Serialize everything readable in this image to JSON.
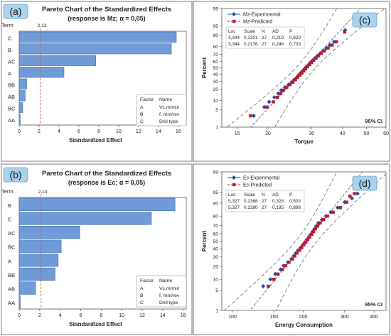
{
  "panel_tags": {
    "a": "(a)",
    "b": "(b)",
    "c": "(c)",
    "d": "(d)"
  },
  "colors": {
    "bar_fill": "#6f9bd8",
    "bar_stroke": "#3f6aa6",
    "ref_line": "#c0504d",
    "experimental": "#1f4e9c",
    "predicted": "#c0182a",
    "panel_border": "#777777",
    "tag_bg": "#a9d3ee"
  },
  "chart_data": [
    {
      "id": "a",
      "type": "bar",
      "orientation": "horizontal",
      "title": "Pareto Chart of the Standardized Effects",
      "subtitle": "(response is Mz; α = 0,05)",
      "ylabel": "Term",
      "xlabel": "Standardized Effect",
      "categories": [
        "C",
        "B",
        "AC",
        "A",
        "BB",
        "AB",
        "BC",
        "AA"
      ],
      "values": [
        15.8,
        15.3,
        7.7,
        4.5,
        0.75,
        0.6,
        0.35,
        0.1
      ],
      "reference": {
        "value": 2.13,
        "label": "2,13"
      },
      "xlim": [
        0,
        16.8
      ],
      "xticks": [
        "0",
        "2",
        "4",
        "6",
        "8",
        "10",
        "12",
        "14",
        "16"
      ],
      "legend": {
        "position": "bottom-right",
        "header": [
          "Factor",
          "Name"
        ],
        "rows": [
          [
            "A",
            "Vc.m/min"
          ],
          [
            "B",
            "f, mm/rev"
          ],
          [
            "C",
            "Drill type"
          ]
        ]
      }
    },
    {
      "id": "b",
      "type": "bar",
      "orientation": "horizontal",
      "title": "Pareto Chart of the Standardized Effects",
      "subtitle": "(response is Ec; α = 0,05)",
      "ylabel": "Term",
      "xlabel": "Standardized Effect",
      "categories": [
        "B",
        "C",
        "AC",
        "BC",
        "A",
        "BB",
        "AB",
        "AA"
      ],
      "values": [
        15.2,
        12.9,
        5.9,
        4.1,
        3.8,
        3.5,
        1.6,
        0.1
      ],
      "reference": {
        "value": 2.13,
        "label": "2,13"
      },
      "xlim": [
        0,
        16.3
      ],
      "xticks": [
        "0",
        "2",
        "4",
        "6",
        "8",
        "10",
        "12",
        "14",
        "16"
      ],
      "legend": {
        "position": "bottom-right",
        "header": [
          "Factor",
          "Name"
        ],
        "rows": [
          [
            "A",
            "Vc.m/min"
          ],
          [
            "B",
            "f, mm/rev"
          ],
          [
            "C",
            "Drill type"
          ]
        ]
      }
    },
    {
      "id": "c",
      "type": "scatter",
      "plot": "normal probability plot",
      "xlabel": "Torque",
      "ylabel": "Percent",
      "x_scale": "log",
      "y_scale": "normal probability",
      "xlim": [
        13,
        60
      ],
      "xticks": [
        15,
        20,
        30,
        40,
        50,
        60
      ],
      "yticks": [
        1,
        5,
        10,
        20,
        30,
        40,
        50,
        60,
        70,
        80,
        90,
        95,
        99
      ],
      "ci_label": "95% CI",
      "fit": {
        "median": 28.4,
        "scale": 0.22,
        "ci_factor": 0.19
      },
      "stats_table": {
        "header": [
          "Loc",
          "Scale",
          "N",
          "AD",
          "P"
        ],
        "rows": [
          [
            "3,344",
            "0,2201",
            "27",
            "0,219",
            "0,820"
          ],
          [
            "3,344",
            "0,2176",
            "27",
            "0,246",
            "0,733"
          ]
        ]
      },
      "series": [
        {
          "name": "Mz-Experimental",
          "marker": "diamond",
          "points": [
            [
              17.5,
              3.0
            ],
            [
              19.3,
              6.2
            ],
            [
              20.2,
              9.1
            ],
            [
              21.2,
              12.4
            ],
            [
              22.0,
              15.7
            ],
            [
              22.6,
              19.0
            ],
            [
              23.4,
              22.3
            ],
            [
              24.2,
              25.5
            ],
            [
              24.9,
              28.8
            ],
            [
              25.5,
              32.1
            ],
            [
              26.1,
              35.4
            ],
            [
              26.6,
              38.7
            ],
            [
              27.1,
              42.0
            ],
            [
              27.6,
              45.3
            ],
            [
              28.1,
              48.5
            ],
            [
              28.6,
              51.8
            ],
            [
              29.2,
              55.1
            ],
            [
              29.7,
              58.4
            ],
            [
              30.3,
              61.7
            ],
            [
              31.0,
              65.0
            ],
            [
              31.7,
              68.2
            ],
            [
              32.5,
              71.5
            ],
            [
              33.4,
              74.8
            ],
            [
              34.4,
              78.1
            ],
            [
              35.5,
              81.4
            ],
            [
              37.0,
              84.7
            ],
            [
              41.0,
              93.0
            ]
          ]
        },
        {
          "name": "Mz-Predicted",
          "marker": "square",
          "points": [
            [
              17.0,
              3.0
            ],
            [
              19.8,
              6.2
            ],
            [
              21.0,
              9.1
            ],
            [
              21.8,
              12.4
            ],
            [
              22.5,
              15.7
            ],
            [
              23.1,
              19.0
            ],
            [
              23.8,
              22.3
            ],
            [
              24.5,
              25.5
            ],
            [
              25.2,
              28.8
            ],
            [
              25.8,
              32.1
            ],
            [
              26.3,
              35.4
            ],
            [
              26.9,
              38.7
            ],
            [
              27.4,
              42.0
            ],
            [
              27.9,
              45.3
            ],
            [
              28.4,
              48.5
            ],
            [
              28.9,
              51.8
            ],
            [
              29.5,
              55.1
            ],
            [
              30.0,
              58.4
            ],
            [
              30.6,
              61.7
            ],
            [
              31.3,
              65.0
            ],
            [
              32.0,
              68.2
            ],
            [
              32.8,
              71.5
            ],
            [
              33.8,
              74.8
            ],
            [
              35.0,
              78.1
            ],
            [
              36.3,
              81.4
            ],
            [
              37.8,
              84.7
            ],
            [
              40.8,
              92.0
            ]
          ]
        }
      ]
    },
    {
      "id": "d",
      "type": "scatter",
      "plot": "normal probability plot",
      "xlabel": "Energy Consumption",
      "ylabel": "Percent",
      "x_scale": "log",
      "y_scale": "normal probability",
      "xlim": [
        90,
        450
      ],
      "xticks": [
        100,
        150,
        200,
        300,
        400
      ],
      "yticks": [
        1,
        5,
        10,
        20,
        30,
        40,
        50,
        60,
        70,
        80,
        90,
        95,
        99
      ],
      "ci_label": "95% CI",
      "fit": {
        "median": 206,
        "scale": 0.237,
        "ci_factor": 0.2
      },
      "stats_table": {
        "header": [
          "Loc",
          "Scale",
          "N",
          "AD",
          "P"
        ],
        "rows": [
          [
            "5,327",
            "0,2368",
            "27",
            "0,328",
            "0,503"
          ],
          [
            "5,327",
            "0,2380",
            "27",
            "0,185",
            "0,898"
          ]
        ]
      },
      "series": [
        {
          "name": "Ec-Experimental",
          "marker": "diamond",
          "points": [
            [
              135,
              6.5
            ],
            [
              145,
              10.0
            ],
            [
              152,
              13.5
            ],
            [
              160,
              17.0
            ],
            [
              165,
              20.5
            ],
            [
              172,
              24.0
            ],
            [
              178,
              27.5
            ],
            [
              182,
              31.0
            ],
            [
              186,
              34.5
            ],
            [
              190,
              38.0
            ],
            [
              195,
              41.5
            ],
            [
              199,
              45.0
            ],
            [
              203,
              48.5
            ],
            [
              207,
              52.0
            ],
            [
              211,
              55.5
            ],
            [
              215,
              59.0
            ],
            [
              219,
              62.5
            ],
            [
              223,
              66.0
            ],
            [
              227,
              69.5
            ],
            [
              232,
              73.0
            ],
            [
              240,
              76.5
            ],
            [
              250,
              80.0
            ],
            [
              262,
              83.5
            ],
            [
              280,
              87.0
            ],
            [
              300,
              90.5
            ],
            [
              322,
              92.5
            ],
            [
              340,
              94.5
            ]
          ]
        },
        {
          "name": "Ec-Predicted",
          "marker": "square",
          "points": [
            [
              142,
              6.5
            ],
            [
              150,
              10.0
            ],
            [
              156,
              13.5
            ],
            [
              163,
              17.0
            ],
            [
              168,
              20.5
            ],
            [
              174,
              24.0
            ],
            [
              180,
              27.5
            ],
            [
              184,
              31.0
            ],
            [
              188,
              34.5
            ],
            [
              193,
              38.0
            ],
            [
              197,
              41.5
            ],
            [
              201,
              45.0
            ],
            [
              205,
              48.5
            ],
            [
              209,
              52.0
            ],
            [
              213,
              55.5
            ],
            [
              217,
              59.0
            ],
            [
              221,
              62.5
            ],
            [
              225,
              66.0
            ],
            [
              230,
              69.5
            ],
            [
              236,
              73.0
            ],
            [
              244,
              76.5
            ],
            [
              254,
              80.0
            ],
            [
              268,
              83.5
            ],
            [
              288,
              87.0
            ],
            [
              306,
              90.5
            ],
            [
              316,
              93.5
            ],
            [
              330,
              94.5
            ]
          ]
        }
      ]
    }
  ]
}
